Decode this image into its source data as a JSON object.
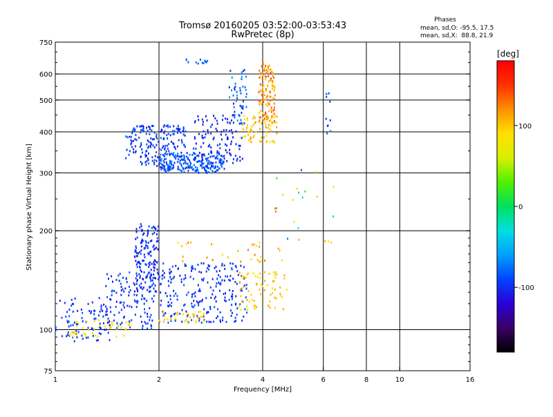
{
  "chart_data": {
    "type": "scatter",
    "title": "Tromsø 20160205 03:52:00-03:53:43",
    "subtitle": "RwPretec (8p)",
    "xlabel": "Frequency [MHz]",
    "ylabel": "Stationary phase Virtual Height [km]",
    "x_scale": "log",
    "y_scale": "log",
    "xlim": [
      1,
      16
    ],
    "ylim": [
      75,
      750
    ],
    "x_ticks": [
      1,
      2,
      4,
      6,
      8,
      10,
      16
    ],
    "y_ticks": [
      75,
      100,
      200,
      300,
      400,
      500,
      600,
      750
    ],
    "x_gridlines": [
      2,
      4,
      6,
      8,
      10
    ],
    "y_gridlines": [
      100,
      200,
      300,
      400,
      500,
      600
    ],
    "phase_info": {
      "heading": "Phases",
      "line1": "mean, sd,O: -95.5, 17.5",
      "line2": "mean, sd,X:  88.8, 21.9"
    },
    "colorbar": {
      "label": "[deg]",
      "range": [
        -180,
        180
      ],
      "ticks": [
        -100,
        0,
        100
      ],
      "colors": [
        "#000000",
        "#3a0066",
        "#2a00d8",
        "#0044ff",
        "#00a0ff",
        "#00e0e0",
        "#00e060",
        "#50f000",
        "#d8f000",
        "#ffe000",
        "#ff9000",
        "#ff3000",
        "#ff0000"
      ]
    },
    "series": [
      {
        "regions": [
          {
            "x": [
              1.0,
              1.45
            ],
            "y": [
              92,
              125
            ],
            "phase": [
              -110,
              -85
            ],
            "n": 90
          },
          {
            "x": [
              1.1,
              1.65
            ],
            "y": [
              95,
              108
            ],
            "phase": [
              60,
              110
            ],
            "n": 45
          },
          {
            "x": [
              1.4,
              1.95
            ],
            "y": [
              100,
              150
            ],
            "phase": [
              -110,
              -80
            ],
            "n": 120
          },
          {
            "x": [
              1.7,
              2.0
            ],
            "y": [
              130,
              210
            ],
            "phase": [
              -115,
              -85
            ],
            "n": 150
          },
          {
            "x": [
              2.0,
              3.6
            ],
            "y": [
              105,
              160
            ],
            "phase": [
              -110,
              -80
            ],
            "n": 240
          },
          {
            "x": [
              2.0,
              2.8
            ],
            "y": [
              105,
              115
            ],
            "phase": [
              80,
              110
            ],
            "n": 35
          },
          {
            "x": [
              3.4,
              4.7
            ],
            "y": [
              115,
              150
            ],
            "phase": [
              80,
              115
            ],
            "n": 70
          },
          {
            "x": [
              2.2,
              4.6
            ],
            "y": [
              160,
              185
            ],
            "phase": [
              80,
              130
            ],
            "n": 30
          },
          {
            "x": [
              1.6,
              2.4
            ],
            "y": [
              310,
              420
            ],
            "phase": [
              -110,
              -80
            ],
            "n": 200
          },
          {
            "x": [
              2.0,
              3.1
            ],
            "y": [
              300,
              345
            ],
            "phase": [
              -100,
              -70
            ],
            "n": 200
          },
          {
            "x": [
              2.5,
              3.5
            ],
            "y": [
              320,
              450
            ],
            "phase": [
              -115,
              -90
            ],
            "n": 120
          },
          {
            "x": [
              3.2,
              3.6
            ],
            "y": [
              420,
              630
            ],
            "phase": [
              -110,
              -60
            ],
            "n": 50
          },
          {
            "x": [
              3.5,
              4.4
            ],
            "y": [
              370,
              450
            ],
            "phase": [
              80,
              120
            ],
            "n": 70
          },
          {
            "x": [
              3.9,
              4.35
            ],
            "y": [
              430,
              650
            ],
            "phase": [
              90,
              150
            ],
            "n": 120
          },
          {
            "x": [
              2.4,
              2.8
            ],
            "y": [
              645,
              665
            ],
            "phase": [
              -90,
              -70
            ],
            "n": 12
          },
          {
            "x": [
              4.3,
              6.6
            ],
            "y": [
              180,
              320
            ],
            "phase": [
              -100,
              140
            ],
            "n": 22
          },
          {
            "x": [
              6.1,
              6.3
            ],
            "y": [
              380,
              570
            ],
            "phase": [
              -100,
              -80
            ],
            "n": 10
          }
        ]
      }
    ]
  }
}
